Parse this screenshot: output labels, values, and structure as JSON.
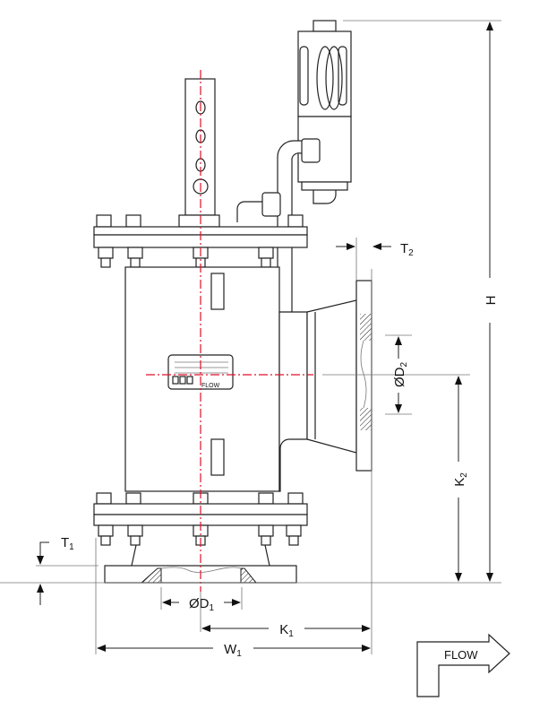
{
  "dimensions": {
    "H": {
      "main": "H",
      "sub": ""
    },
    "K2": {
      "main": "K",
      "sub": "2"
    },
    "K1": {
      "main": "K",
      "sub": "1"
    },
    "W1": {
      "main": "W",
      "sub": "1"
    },
    "T1": {
      "main": "T",
      "sub": "1"
    },
    "T2": {
      "main": "T",
      "sub": "2"
    },
    "D1": {
      "main": "ØD",
      "sub": "1"
    },
    "D2": {
      "main": "ØD",
      "sub": "2"
    }
  },
  "nameplate": {
    "flow_text": "FLOW"
  },
  "flow_arrow": {
    "label": "FLOW"
  },
  "colors": {
    "centerline": "#e0102a",
    "linework": "#222222"
  }
}
